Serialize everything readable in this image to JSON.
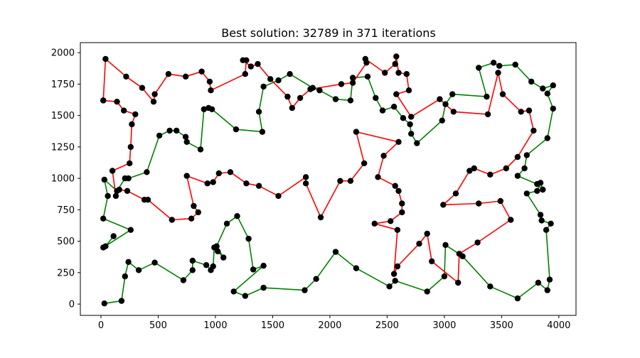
{
  "chart_data": {
    "type": "line",
    "title": "Best solution: 32789 in 371 iterations",
    "xlabel": "",
    "ylabel": "",
    "xlim": [
      -180,
      4150
    ],
    "ylim": [
      -90,
      2080
    ],
    "x_ticks": [
      0,
      500,
      1000,
      1500,
      2000,
      2500,
      3000,
      3500,
      4000
    ],
    "y_ticks": [
      0,
      250,
      500,
      750,
      1000,
      1250,
      1500,
      1750,
      2000
    ],
    "grid": false,
    "colors": {
      "green": "#008000",
      "red": "#ff0000",
      "node": "#000000"
    },
    "green_path": [
      [
        30,
        5
      ],
      [
        180,
        25
      ],
      [
        210,
        220
      ],
      [
        240,
        335
      ],
      [
        330,
        270
      ],
      [
        470,
        330
      ],
      [
        720,
        190
      ],
      [
        800,
        270
      ],
      [
        800,
        345
      ],
      [
        920,
        310
      ],
      [
        960,
        270
      ],
      [
        980,
        300
      ],
      [
        990,
        450
      ],
      [
        1020,
        420
      ],
      [
        1070,
        370
      ],
      [
        1010,
        460
      ],
      [
        1100,
        640
      ],
      [
        1190,
        700
      ],
      [
        1290,
        520
      ],
      [
        1330,
        275
      ],
      [
        1420,
        305
      ],
      [
        1160,
        100
      ],
      [
        1260,
        65
      ],
      [
        1420,
        130
      ],
      [
        1780,
        110
      ],
      [
        1880,
        200
      ],
      [
        2050,
        415
      ],
      [
        2230,
        285
      ],
      [
        2520,
        140
      ],
      [
        2570,
        185
      ],
      [
        2850,
        100
      ],
      [
        3000,
        220
      ],
      [
        3010,
        470
      ],
      [
        3160,
        380
      ],
      [
        3400,
        140
      ],
      [
        3640,
        45
      ],
      [
        3820,
        170
      ],
      [
        3900,
        110
      ],
      [
        3920,
        195
      ],
      [
        3890,
        590
      ],
      [
        3930,
        640
      ],
      [
        3850,
        665
      ],
      [
        3840,
        710
      ],
      [
        3720,
        880
      ],
      [
        3810,
        900
      ],
      [
        3840,
        965
      ],
      [
        3860,
        910
      ],
      [
        3810,
        955
      ],
      [
        3640,
        1020
      ],
      [
        3700,
        1080
      ],
      [
        3720,
        1185
      ],
      [
        3900,
        1320
      ],
      [
        3950,
        1555
      ],
      [
        3900,
        1675
      ],
      [
        3950,
        1740
      ],
      [
        3860,
        1715
      ],
      [
        3760,
        1770
      ],
      [
        3620,
        1905
      ],
      [
        3480,
        1895
      ],
      [
        3430,
        1920
      ],
      [
        3300,
        1880
      ],
      [
        3370,
        1650
      ],
      [
        3070,
        1670
      ],
      [
        3010,
        1590
      ],
      [
        2980,
        1460
      ],
      [
        2760,
        1280
      ],
      [
        2710,
        1355
      ],
      [
        2700,
        1430
      ],
      [
        2640,
        1480
      ],
      [
        2560,
        1570
      ],
      [
        2460,
        1540
      ],
      [
        2400,
        1640
      ],
      [
        2330,
        1810
      ],
      [
        2200,
        1800
      ],
      [
        2180,
        1620
      ],
      [
        2050,
        1630
      ],
      [
        1910,
        1700
      ],
      [
        1850,
        1720
      ],
      [
        1650,
        1830
      ],
      [
        1550,
        1780
      ],
      [
        1420,
        1730
      ],
      [
        1380,
        1530
      ],
      [
        1410,
        1370
      ],
      [
        1180,
        1390
      ],
      [
        970,
        1550
      ],
      [
        940,
        1560
      ],
      [
        900,
        1550
      ],
      [
        870,
        1230
      ],
      [
        750,
        1290
      ],
      [
        740,
        1330
      ],
      [
        660,
        1380
      ],
      [
        600,
        1380
      ],
      [
        510,
        1340
      ],
      [
        400,
        1050
      ],
      [
        240,
        1000
      ],
      [
        210,
        1000
      ],
      [
        140,
        900
      ],
      [
        30,
        990
      ],
      [
        60,
        860
      ],
      [
        20,
        680
      ],
      [
        260,
        590
      ],
      [
        20,
        450
      ],
      [
        40,
        460
      ],
      [
        110,
        540
      ]
    ],
    "red_path": [
      [
        20,
        1620
      ],
      [
        140,
        1610
      ],
      [
        200,
        1540
      ],
      [
        300,
        1510
      ],
      [
        270,
        1430
      ],
      [
        260,
        1250
      ],
      [
        250,
        1120
      ],
      [
        100,
        1060
      ],
      [
        130,
        860
      ],
      [
        160,
        910
      ],
      [
        230,
        900
      ],
      [
        380,
        830
      ],
      [
        410,
        830
      ],
      [
        620,
        670
      ],
      [
        790,
        680
      ],
      [
        850,
        730
      ],
      [
        810,
        780
      ],
      [
        750,
        1020
      ],
      [
        930,
        960
      ],
      [
        980,
        970
      ],
      [
        1030,
        1040
      ],
      [
        1130,
        1050
      ],
      [
        1270,
        960
      ],
      [
        1380,
        940
      ],
      [
        1550,
        860
      ],
      [
        1790,
        1010
      ],
      [
        1790,
        960
      ],
      [
        1920,
        690
      ],
      [
        2090,
        980
      ],
      [
        2180,
        980
      ],
      [
        2300,
        1120
      ],
      [
        2230,
        1370
      ],
      [
        2600,
        1290
      ],
      [
        2470,
        1180
      ],
      [
        2420,
        1010
      ],
      [
        2570,
        940
      ],
      [
        2600,
        900
      ],
      [
        2630,
        800
      ],
      [
        2630,
        730
      ],
      [
        2530,
        660
      ],
      [
        2390,
        640
      ],
      [
        2590,
        590
      ],
      [
        2560,
        240
      ],
      [
        2590,
        300
      ],
      [
        2780,
        480
      ],
      [
        2850,
        560
      ],
      [
        2890,
        340
      ],
      [
        3120,
        170
      ],
      [
        3130,
        400
      ],
      [
        3290,
        490
      ],
      [
        3580,
        670
      ],
      [
        3490,
        820
      ],
      [
        3300,
        800
      ],
      [
        2990,
        790
      ],
      [
        3100,
        880
      ],
      [
        3220,
        1060
      ],
      [
        3260,
        1080
      ],
      [
        3400,
        1030
      ],
      [
        3540,
        1080
      ],
      [
        3640,
        1170
      ],
      [
        3780,
        1380
      ],
      [
        3740,
        1540
      ],
      [
        3670,
        1530
      ],
      [
        3510,
        1670
      ],
      [
        3470,
        1840
      ],
      [
        3380,
        1510
      ],
      [
        3080,
        1530
      ],
      [
        2960,
        1630
      ],
      [
        2710,
        1490
      ],
      [
        2580,
        1670
      ],
      [
        2690,
        1700
      ],
      [
        2670,
        1830
      ],
      [
        2600,
        1840
      ],
      [
        2580,
        1970
      ],
      [
        2570,
        1910
      ],
      [
        2480,
        1840
      ],
      [
        2310,
        1950
      ],
      [
        2320,
        1920
      ],
      [
        2200,
        1760
      ],
      [
        2100,
        1750
      ],
      [
        1830,
        1710
      ],
      [
        1740,
        1640
      ],
      [
        1670,
        1560
      ],
      [
        1630,
        1650
      ],
      [
        1480,
        1790
      ],
      [
        1370,
        1910
      ],
      [
        1310,
        1890
      ],
      [
        1240,
        1940
      ],
      [
        1270,
        1940
      ],
      [
        1260,
        1830
      ],
      [
        960,
        1700
      ],
      [
        950,
        1770
      ],
      [
        880,
        1850
      ],
      [
        740,
        1810
      ],
      [
        590,
        1830
      ],
      [
        470,
        1670
      ],
      [
        460,
        1610
      ],
      [
        360,
        1720
      ],
      [
        220,
        1810
      ],
      [
        40,
        1950
      ],
      [
        20,
        1620
      ]
    ]
  }
}
